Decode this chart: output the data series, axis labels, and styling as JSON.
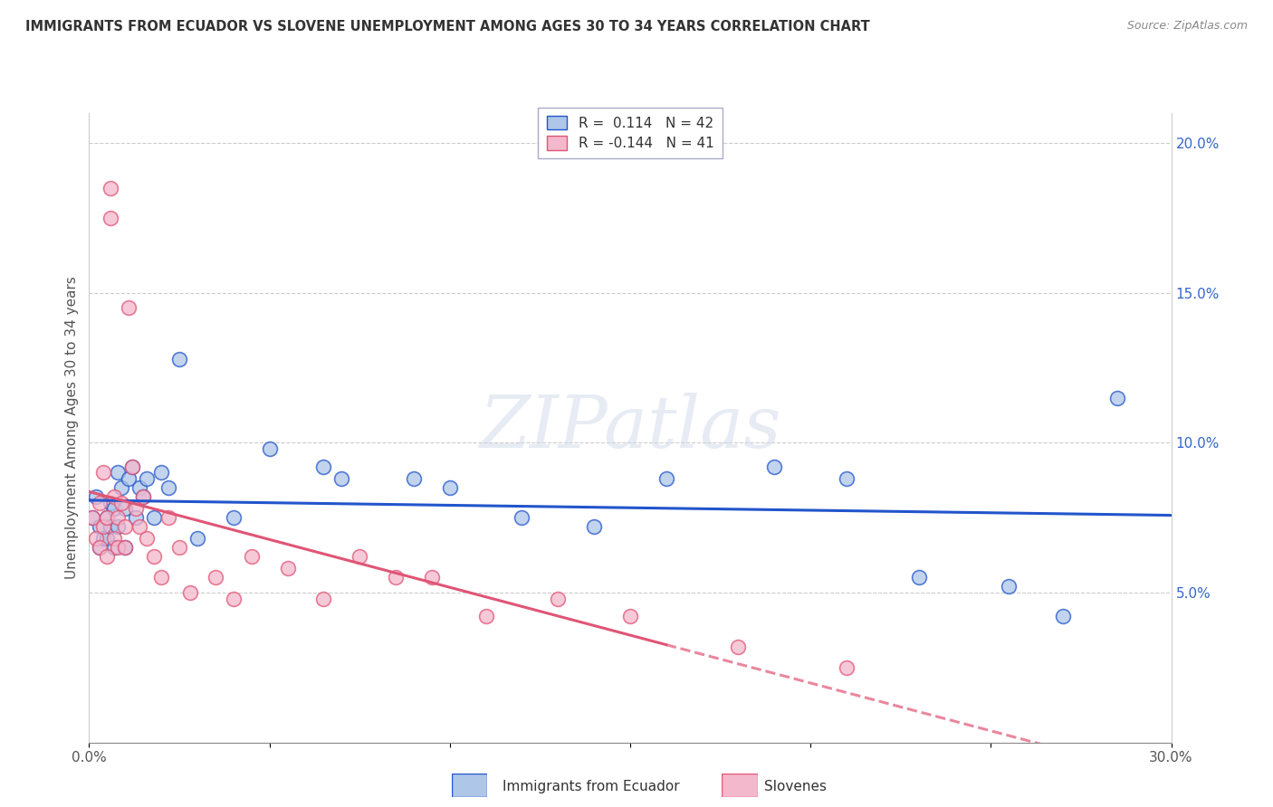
{
  "title": "IMMIGRANTS FROM ECUADOR VS SLOVENE UNEMPLOYMENT AMONG AGES 30 TO 34 YEARS CORRELATION CHART",
  "source": "Source: ZipAtlas.com",
  "ylabel": "Unemployment Among Ages 30 to 34 years",
  "xlim": [
    0.0,
    0.3
  ],
  "ylim": [
    0.0,
    0.21
  ],
  "xticks": [
    0.0,
    0.05,
    0.1,
    0.15,
    0.2,
    0.25,
    0.3
  ],
  "xticklabels": [
    "0.0%",
    "",
    "",
    "",
    "",
    "",
    "30.0%"
  ],
  "yticks_right": [
    0.05,
    0.1,
    0.15,
    0.2
  ],
  "ytick_labels_right": [
    "5.0%",
    "10.0%",
    "15.0%",
    "20.0%"
  ],
  "color_blue": "#aec6e8",
  "color_pink": "#f4b8cc",
  "line_blue": "#2255cc",
  "line_pink": "#e05575",
  "ecuador_x": [
    0.001,
    0.002,
    0.003,
    0.003,
    0.004,
    0.005,
    0.005,
    0.006,
    0.006,
    0.007,
    0.007,
    0.008,
    0.008,
    0.009,
    0.01,
    0.01,
    0.011,
    0.012,
    0.013,
    0.014,
    0.015,
    0.016,
    0.018,
    0.02,
    0.022,
    0.025,
    0.03,
    0.04,
    0.05,
    0.065,
    0.07,
    0.09,
    0.1,
    0.12,
    0.14,
    0.16,
    0.19,
    0.21,
    0.23,
    0.255,
    0.27,
    0.285
  ],
  "ecuador_y": [
    0.075,
    0.082,
    0.072,
    0.065,
    0.068,
    0.075,
    0.068,
    0.08,
    0.072,
    0.078,
    0.065,
    0.09,
    0.072,
    0.085,
    0.078,
    0.065,
    0.088,
    0.092,
    0.075,
    0.085,
    0.082,
    0.088,
    0.075,
    0.09,
    0.085,
    0.128,
    0.068,
    0.075,
    0.098,
    0.092,
    0.088,
    0.088,
    0.085,
    0.075,
    0.072,
    0.088,
    0.092,
    0.088,
    0.055,
    0.052,
    0.042,
    0.115
  ],
  "slovene_x": [
    0.001,
    0.002,
    0.003,
    0.003,
    0.004,
    0.004,
    0.005,
    0.005,
    0.006,
    0.006,
    0.007,
    0.007,
    0.008,
    0.008,
    0.009,
    0.01,
    0.01,
    0.011,
    0.012,
    0.013,
    0.014,
    0.015,
    0.016,
    0.018,
    0.02,
    0.022,
    0.025,
    0.028,
    0.035,
    0.04,
    0.045,
    0.055,
    0.065,
    0.075,
    0.085,
    0.095,
    0.11,
    0.13,
    0.15,
    0.18,
    0.21
  ],
  "slovene_y": [
    0.075,
    0.068,
    0.08,
    0.065,
    0.072,
    0.09,
    0.075,
    0.062,
    0.185,
    0.175,
    0.082,
    0.068,
    0.075,
    0.065,
    0.08,
    0.072,
    0.065,
    0.145,
    0.092,
    0.078,
    0.072,
    0.082,
    0.068,
    0.062,
    0.055,
    0.075,
    0.065,
    0.05,
    0.055,
    0.048,
    0.062,
    0.058,
    0.048,
    0.062,
    0.055,
    0.055,
    0.042,
    0.048,
    0.042,
    0.032,
    0.025
  ]
}
